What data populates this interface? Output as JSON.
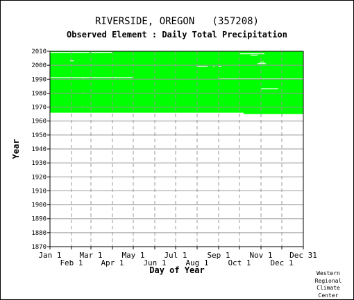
{
  "chart_data": {
    "type": "heatmap",
    "title": "RIVERSIDE, OREGON   (357208)",
    "subtitle": "Observed Element : Daily Total Precipitation",
    "xlabel": "Day of Year",
    "ylabel": "Year",
    "x_tick_labels_top": [
      "Jan 1",
      "Mar 1",
      "May 1",
      "Jul 1",
      "Sep 1",
      "Nov 1",
      "Dec 31"
    ],
    "x_tick_labels_bottom": [
      "Feb 1",
      "Apr 1",
      "Jun 1",
      "Aug 1",
      "Oct 1",
      "Dec 1"
    ],
    "x_tick_days_top": [
      1,
      60,
      121,
      182,
      244,
      305,
      365
    ],
    "x_tick_days_bottom": [
      32,
      91,
      152,
      213,
      274,
      335
    ],
    "ylim": [
      1870,
      2010
    ],
    "y_ticks": [
      1870,
      1880,
      1890,
      1900,
      1910,
      1920,
      1930,
      1940,
      1950,
      1960,
      1970,
      1980,
      1990,
      2000,
      2010
    ],
    "grid": true,
    "fill_color": "#00ff00",
    "data_coverage": [
      {
        "year_start": 1966,
        "year_end": 2010,
        "day_start": 1,
        "day_end": 280
      },
      {
        "year_start": 1965,
        "year_end": 2010,
        "day_start": 280,
        "day_end": 366
      }
    ],
    "missing_data": [
      {
        "year": 2009,
        "day_start": 1,
        "day_end": 58
      },
      {
        "year": 2009,
        "day_start": 60,
        "day_end": 90
      },
      {
        "year": 2008,
        "day_start": 275,
        "day_end": 310
      },
      {
        "year": 2007,
        "day_start": 290,
        "day_end": 300
      },
      {
        "year": 2003,
        "day_start": 30,
        "day_end": 35
      },
      {
        "year": 2002,
        "day_start": 303,
        "day_end": 310
      },
      {
        "year": 2001,
        "day_start": 300,
        "day_end": 312
      },
      {
        "year": 1999,
        "day_start": 212,
        "day_end": 228
      },
      {
        "year": 1999,
        "day_start": 236,
        "day_end": 238
      },
      {
        "year": 1999,
        "day_start": 244,
        "day_end": 248
      },
      {
        "year": 1991,
        "day_start": 1,
        "day_end": 120
      },
      {
        "year": 1990,
        "day_start": 245,
        "day_end": 366
      },
      {
        "year": 1983,
        "day_start": 305,
        "day_end": 330
      },
      {
        "year": 1990,
        "day_start": 48,
        "day_end": 49
      },
      {
        "year": 1980,
        "day_start": 48,
        "day_end": 49
      },
      {
        "year": 1970,
        "day_start": 48,
        "day_end": 49
      }
    ]
  },
  "credit": [
    "Western",
    "Regional",
    "Climate",
    "Center"
  ]
}
